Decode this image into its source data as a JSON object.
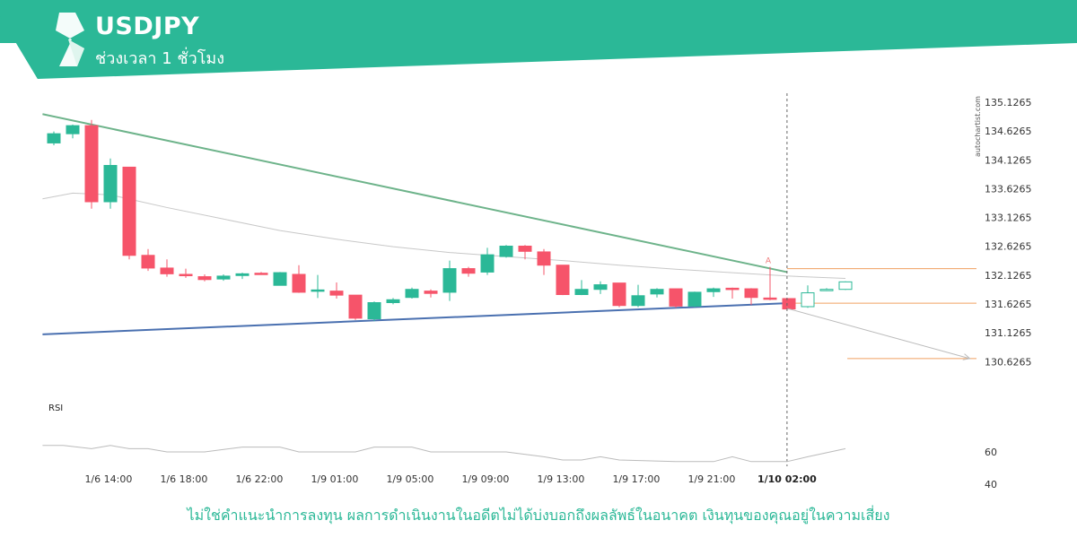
{
  "header": {
    "symbol": "USDJPY",
    "timeframe": "ช่วงเวลา 1 ชั่วโมง",
    "banner_color": "#2bb897"
  },
  "footer": {
    "disclaimer": "ไม่ใช่คำแนะนำการลงทุน ผลการดำเนินงานในอดีตไม่ได้บ่งบอกถึงผลลัพธ์ในอนาคต เงินทุนของคุณอยู่ในความเสี่ยง"
  },
  "watermark": "autochartist.com",
  "chart_data": {
    "type": "candlestick",
    "title": "",
    "xlabel": "",
    "ylabel": "",
    "ylim": [
      130.18,
      135.22
    ],
    "y_ticks": [
      "135.1265",
      "134.6265",
      "134.1265",
      "133.6265",
      "133.1265",
      "132.6265",
      "132.1265",
      "131.6265",
      "131.1265",
      "130.6265"
    ],
    "x_ticks": [
      {
        "label": "1/6 14:00",
        "index": 2.9
      },
      {
        "label": "1/6 18:00",
        "index": 6.9
      },
      {
        "label": "1/6 22:00",
        "index": 10.9
      },
      {
        "label": "1/9 01:00",
        "index": 14.9
      },
      {
        "label": "1/9 05:00",
        "index": 18.9
      },
      {
        "label": "1/9 09:00",
        "index": 22.9
      },
      {
        "label": "1/9 13:00",
        "index": 26.9
      },
      {
        "label": "1/9 17:00",
        "index": 30.9
      },
      {
        "label": "1/9 21:00",
        "index": 34.9
      },
      {
        "label": "1/10 02:00",
        "index": 38.9,
        "bold": true
      }
    ],
    "colors": {
      "up": "#2bb897",
      "down": "#f6546a",
      "resistance": "#6db38a",
      "support": "#4a70b0",
      "level": "#f0a060",
      "ma": "#c8c8c8",
      "projection": "#bbbbbb"
    },
    "candles": [
      {
        "o": 134.42,
        "h": 134.62,
        "l": 134.38,
        "c": 134.58
      },
      {
        "o": 134.58,
        "h": 134.74,
        "l": 134.5,
        "c": 134.72
      },
      {
        "o": 134.72,
        "h": 134.82,
        "l": 133.28,
        "c": 133.4
      },
      {
        "o": 133.4,
        "h": 134.15,
        "l": 133.28,
        "c": 134.03
      },
      {
        "o": 134.0,
        "h": 134.0,
        "l": 132.4,
        "c": 132.47
      },
      {
        "o": 132.47,
        "h": 132.58,
        "l": 132.2,
        "c": 132.25
      },
      {
        "o": 132.25,
        "h": 132.4,
        "l": 132.1,
        "c": 132.15
      },
      {
        "o": 132.14,
        "h": 132.24,
        "l": 132.08,
        "c": 132.12
      },
      {
        "o": 132.1,
        "h": 132.14,
        "l": 132.02,
        "c": 132.05
      },
      {
        "o": 132.06,
        "h": 132.14,
        "l": 132.03,
        "c": 132.11
      },
      {
        "o": 132.12,
        "h": 132.17,
        "l": 132.06,
        "c": 132.15
      },
      {
        "o": 132.16,
        "h": 132.18,
        "l": 132.14,
        "c": 132.15
      },
      {
        "o": 131.95,
        "h": 132.18,
        "l": 131.95,
        "c": 132.17
      },
      {
        "o": 132.14,
        "h": 132.3,
        "l": 131.82,
        "c": 131.83
      },
      {
        "o": 131.85,
        "h": 132.13,
        "l": 131.73,
        "c": 131.87
      },
      {
        "o": 131.85,
        "h": 132.0,
        "l": 131.72,
        "c": 131.78
      },
      {
        "o": 131.78,
        "h": 131.78,
        "l": 131.35,
        "c": 131.38
      },
      {
        "o": 131.37,
        "h": 131.67,
        "l": 131.33,
        "c": 131.65
      },
      {
        "o": 131.65,
        "h": 131.73,
        "l": 131.62,
        "c": 131.7
      },
      {
        "o": 131.74,
        "h": 131.91,
        "l": 131.72,
        "c": 131.88
      },
      {
        "o": 131.85,
        "h": 131.88,
        "l": 131.74,
        "c": 131.81
      },
      {
        "o": 131.83,
        "h": 132.38,
        "l": 131.68,
        "c": 132.24
      },
      {
        "o": 132.24,
        "h": 132.27,
        "l": 132.1,
        "c": 132.16
      },
      {
        "o": 132.18,
        "h": 132.6,
        "l": 132.13,
        "c": 132.48
      },
      {
        "o": 132.45,
        "h": 132.65,
        "l": 132.43,
        "c": 132.63
      },
      {
        "o": 132.63,
        "h": 132.65,
        "l": 132.4,
        "c": 132.54
      },
      {
        "o": 132.53,
        "h": 132.58,
        "l": 132.13,
        "c": 132.3
      },
      {
        "o": 132.3,
        "h": 132.3,
        "l": 131.78,
        "c": 131.79
      },
      {
        "o": 131.79,
        "h": 132.04,
        "l": 131.78,
        "c": 131.88
      },
      {
        "o": 131.88,
        "h": 132.02,
        "l": 131.8,
        "c": 131.96
      },
      {
        "o": 131.99,
        "h": 131.99,
        "l": 131.57,
        "c": 131.6
      },
      {
        "o": 131.6,
        "h": 131.96,
        "l": 131.57,
        "c": 131.77
      },
      {
        "o": 131.8,
        "h": 131.9,
        "l": 131.74,
        "c": 131.88
      },
      {
        "o": 131.89,
        "h": 131.89,
        "l": 131.56,
        "c": 131.59
      },
      {
        "o": 131.59,
        "h": 131.84,
        "l": 131.57,
        "c": 131.83
      },
      {
        "o": 131.84,
        "h": 131.91,
        "l": 131.75,
        "c": 131.89
      },
      {
        "o": 131.9,
        "h": 131.91,
        "l": 131.72,
        "c": 131.89
      },
      {
        "o": 131.89,
        "h": 131.9,
        "l": 131.61,
        "c": 131.74
      },
      {
        "o": 131.73,
        "h": 132.27,
        "l": 131.69,
        "c": 131.71
      },
      {
        "o": 131.72,
        "h": 131.72,
        "l": 131.55,
        "c": 131.54
      },
      {
        "o": 131.58,
        "h": 131.95,
        "l": 131.56,
        "c": 131.82,
        "hollow": true
      },
      {
        "o": 131.86,
        "h": 131.9,
        "l": 131.85,
        "c": 131.88,
        "hollow": true
      },
      {
        "o": 131.88,
        "h": 132.02,
        "l": 131.87,
        "c": 132.01,
        "hollow": true
      }
    ],
    "ma": [
      {
        "i": -0.6,
        "v": 133.45
      },
      {
        "i": 1,
        "v": 133.55
      },
      {
        "i": 3,
        "v": 133.52
      },
      {
        "i": 6,
        "v": 133.3
      },
      {
        "i": 9,
        "v": 133.1
      },
      {
        "i": 12,
        "v": 132.9
      },
      {
        "i": 15,
        "v": 132.75
      },
      {
        "i": 18,
        "v": 132.62
      },
      {
        "i": 21,
        "v": 132.52
      },
      {
        "i": 24,
        "v": 132.45
      },
      {
        "i": 27,
        "v": 132.38
      },
      {
        "i": 30,
        "v": 132.3
      },
      {
        "i": 33,
        "v": 132.23
      },
      {
        "i": 36,
        "v": 132.17
      },
      {
        "i": 39,
        "v": 132.11
      },
      {
        "i": 42,
        "v": 132.07
      }
    ],
    "resistance_line": {
      "start": [
        -0.6,
        134.92
      ],
      "end": [
        38.9,
        132.18
      ]
    },
    "support_line": {
      "start": [
        -0.6,
        131.1
      ],
      "end": [
        38.9,
        131.64
      ]
    },
    "levels": [
      {
        "value": 132.24,
        "start": 38.9,
        "end": 52.9
      },
      {
        "value": 131.64,
        "start": 38.9,
        "end": 52.9
      },
      {
        "value": 130.68,
        "start": 42.1,
        "end": 52.9
      }
    ],
    "projection": {
      "start": [
        38.9,
        131.55
      ],
      "end": [
        48.6,
        130.68
      ]
    },
    "event_index": 38.9,
    "event_label": "A",
    "rsi": {
      "label": "RSI",
      "ylim": [
        30,
        80
      ],
      "ticks": [
        60,
        40
      ],
      "values": [
        {
          "i": -0.6,
          "v": 64
        },
        {
          "i": 0.5,
          "v": 64
        },
        {
          "i": 2,
          "v": 62
        },
        {
          "i": 3,
          "v": 64
        },
        {
          "i": 4,
          "v": 62
        },
        {
          "i": 5,
          "v": 62
        },
        {
          "i": 6,
          "v": 60
        },
        {
          "i": 8,
          "v": 60
        },
        {
          "i": 10,
          "v": 63
        },
        {
          "i": 12,
          "v": 63
        },
        {
          "i": 13,
          "v": 60
        },
        {
          "i": 16,
          "v": 60
        },
        {
          "i": 17,
          "v": 63
        },
        {
          "i": 19,
          "v": 63
        },
        {
          "i": 20,
          "v": 60
        },
        {
          "i": 24,
          "v": 60
        },
        {
          "i": 26,
          "v": 57
        },
        {
          "i": 27,
          "v": 55
        },
        {
          "i": 28,
          "v": 55
        },
        {
          "i": 29,
          "v": 57
        },
        {
          "i": 30,
          "v": 55
        },
        {
          "i": 33,
          "v": 54
        },
        {
          "i": 35,
          "v": 54
        },
        {
          "i": 36,
          "v": 57
        },
        {
          "i": 37,
          "v": 54
        },
        {
          "i": 38.9,
          "v": 54
        },
        {
          "i": 40,
          "v": 57
        },
        {
          "i": 42,
          "v": 62
        }
      ]
    }
  }
}
